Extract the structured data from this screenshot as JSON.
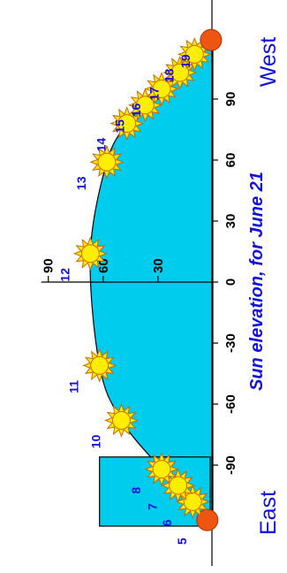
{
  "chart_data": {
    "type": "area",
    "title": "Sun elevation, for June 21",
    "direction_labels": {
      "start": "East",
      "end": "West"
    },
    "x_ticks": [
      -90,
      -60,
      -30,
      0,
      30,
      60,
      90
    ],
    "x_tick_labels": [
      "-90",
      "-60",
      "-30",
      "0",
      "30",
      "60",
      "90"
    ],
    "y_ticks": [
      30,
      60,
      90
    ],
    "y_tick_labels": [
      "30",
      "60",
      "90"
    ],
    "xlim": [
      -120,
      120
    ],
    "ylim": [
      0,
      90
    ],
    "grid": false,
    "hours": [
      {
        "label": "5",
        "azimuth": -117,
        "elevation": 3,
        "color": "#ee5511"
      },
      {
        "label": "6",
        "azimuth": -108,
        "elevation": 11,
        "color": "#ffee00"
      },
      {
        "label": "7",
        "azimuth": -100,
        "elevation": 19,
        "color": "#ffee00"
      },
      {
        "label": "8",
        "azimuth": -92,
        "elevation": 28,
        "color": "#ffee00"
      },
      {
        "label": "10",
        "azimuth": -68,
        "elevation": 50,
        "color": "#ffee00"
      },
      {
        "label": "11",
        "azimuth": -41,
        "elevation": 62,
        "color": "#ffee00"
      },
      {
        "label": "12",
        "azimuth": 14,
        "elevation": 67,
        "color": "#ffee00"
      },
      {
        "label": "13",
        "azimuth": 59,
        "elevation": 58,
        "color": "#ffee00"
      },
      {
        "label": "14",
        "azimuth": 78,
        "elevation": 47,
        "color": "#ffee00"
      },
      {
        "label": "15",
        "azimuth": 87,
        "elevation": 37,
        "color": "#ffee00"
      },
      {
        "label": "16",
        "azimuth": 95,
        "elevation": 28,
        "color": "#ffee00"
      },
      {
        "label": "17",
        "azimuth": 103,
        "elevation": 18,
        "color": "#ffee00"
      },
      {
        "label": "18",
        "azimuth": 112,
        "elevation": 10,
        "color": "#ffee00"
      },
      {
        "label": "19",
        "azimuth": 119,
        "elevation": 1,
        "color": "#ee5511"
      }
    ],
    "obstacle": {
      "azimuth_range": [
        -120,
        -86
      ],
      "height": 62
    },
    "colors": {
      "sky": "#00ccee",
      "text": "#1111dd",
      "sun": "#ffee00",
      "sun_low": "#ee5511",
      "sun_outline": "#cc6600"
    }
  }
}
